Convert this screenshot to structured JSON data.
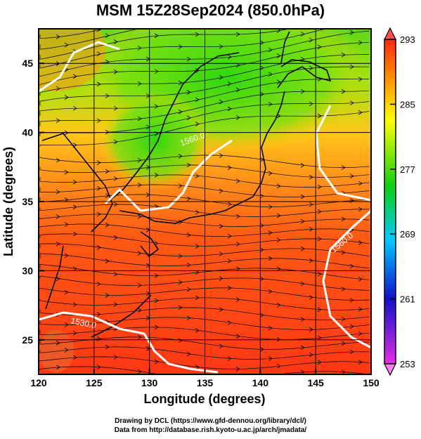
{
  "title": "MSM 15Z28Sep2024 (850.0hPa)",
  "x_axis": {
    "label": "Longitude (degrees)",
    "ticks": [
      "120",
      "125",
      "130",
      "135",
      "140",
      "145",
      "150"
    ],
    "range": [
      120,
      150
    ]
  },
  "y_axis": {
    "label": "Latitude  (degrees)",
    "ticks": [
      "25",
      "30",
      "35",
      "40",
      "45"
    ],
    "range": [
      22.5,
      47.5
    ]
  },
  "colorbar": {
    "ticks": [
      "253",
      "261",
      "269",
      "277",
      "285",
      "293"
    ],
    "range": [
      253,
      293
    ]
  },
  "contour_labels": [
    "1560.0",
    "1560.0",
    "1530.0"
  ],
  "credits": {
    "line1": "Drawing by DCL (https://www.gfd-dennou.org/library/dcl/)",
    "line2": "Data from http://database.rish.kyoto-u.ac.jp/arch/jmadata/"
  },
  "colors": {
    "warm": "#ff3b1a",
    "mid": "#ffd000",
    "cool": "#30dd10",
    "contour": "#ffffff",
    "streamline": "#000000"
  }
}
